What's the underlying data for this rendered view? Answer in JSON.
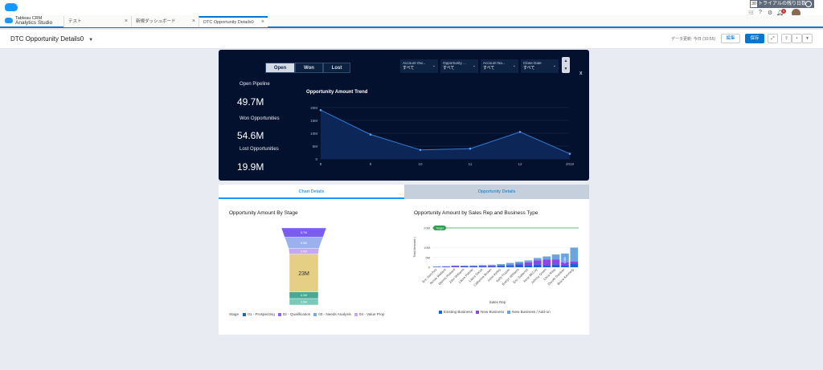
{
  "topbar": {
    "trial_count": "30",
    "trial_label": "トライアルの残り日数",
    "icons": [
      "grid-icon",
      "help-icon",
      "setup-icon",
      "bell-icon"
    ],
    "notification_count": "1"
  },
  "app": {
    "line1": "Tableau CRM",
    "line2": "Analytics Studio"
  },
  "tabs": [
    {
      "label": "テスト"
    },
    {
      "label": "新規ダッシュボード"
    },
    {
      "label": "DTC Opportunity Details0"
    }
  ],
  "header": {
    "title": "DTC Opportunity Details0",
    "modified": "データ更新: 今日 (10:55)",
    "edit_label": "編集",
    "save_label": "保存"
  },
  "segments": [
    {
      "label": "Open"
    },
    {
      "label": "Won"
    },
    {
      "label": "Lost"
    }
  ],
  "filters": [
    {
      "label": "Account Ow...",
      "value": "すべて"
    },
    {
      "label": "Opportunity ...",
      "value": "すべて"
    },
    {
      "label": "Account Na...",
      "value": "すべて"
    },
    {
      "label": "Close Date",
      "value": "すべて"
    }
  ],
  "close_label": "x",
  "kpis": [
    {
      "label": "Open Pipeline",
      "value": "49.7M"
    },
    {
      "label": "Won Opportunities",
      "value": "54.6M"
    },
    {
      "label": "Lost Opportunities",
      "value": "19.9M"
    }
  ],
  "trend_title": "Opportunity Amount Trend",
  "lower_tabs": [
    {
      "label": "Chart Details"
    },
    {
      "label": "Opportunity Details"
    }
  ],
  "funnel_title": "Opportunity Amount By Stage",
  "bar_title": "Opportunity Amount by Sales Rep and Business Type",
  "funnel_legend": {
    "title": "Stage",
    "items": [
      {
        "label": "01 - Prospecting",
        "color": "#1b62d8"
      },
      {
        "label": "02 - Qualification",
        "color": "#9b5cf6"
      },
      {
        "label": "03 - Needs Analysis",
        "color": "#7fa6e0"
      },
      {
        "label": "04 - Value Prop",
        "color": "#c7a6f3"
      }
    ]
  },
  "bar_legend": {
    "items": [
      {
        "label": "Existing Business",
        "color": "#1b62d8"
      },
      {
        "label": "New Business",
        "color": "#8e44e8"
      },
      {
        "label": "New Business / Add-on",
        "color": "#6aa5e0"
      }
    ]
  },
  "chart_data": [
    {
      "type": "area",
      "title": "Opportunity Amount Trend",
      "x": [
        "8",
        "9",
        "10",
        "11",
        "12",
        "2019"
      ],
      "values": [
        19,
        9.5,
        3.5,
        4,
        10.5,
        2
      ],
      "yticks": [
        "0",
        "5M",
        "10M",
        "15M",
        "20M"
      ],
      "ylim": [
        0,
        20
      ],
      "color": "#2f7bd6"
    },
    {
      "type": "bar",
      "subtype": "funnel",
      "title": "Opportunity Amount By Stage",
      "stages": [
        {
          "label": "5.7M",
          "value": 5.7,
          "color": "#7a5cf0"
        },
        {
          "label": "6.9M",
          "value": 6.9,
          "color": "#9bb1ee"
        },
        {
          "label": "3.5M",
          "value": 3.5,
          "color": "#c4a8f3"
        },
        {
          "label": "23M",
          "value": 23,
          "color": "#e4cf84"
        },
        {
          "label": "4.1M",
          "value": 4.1,
          "color": "#4aa894"
        },
        {
          "label": "3.9M",
          "value": 3.9,
          "color": "#7bc9b8"
        }
      ]
    },
    {
      "type": "bar",
      "subtype": "stacked",
      "title": "Opportunity Amount by Sales Rep and Business Type",
      "xlabel": "Sales Rep",
      "ylabel": "Total Amount (",
      "yticks": [
        "0",
        "5M",
        "10M",
        "20M"
      ],
      "ylim": [
        0,
        20
      ],
      "target": {
        "label": "Target",
        "value": 20
      },
      "annotation": "6.8M",
      "categories": [
        "Eric Sanchez",
        "Nicole Wallace",
        "Dennis Howard",
        "John Williams",
        "Laura Palmer",
        "Laura Garza",
        "Catherine Brown",
        "Irene Kelley",
        "Kelly Frazier",
        "Evelyn Williams",
        "Eric Gutierrez",
        "Irene McCoy",
        "Johnny Green",
        "Chris Riley",
        "Doroth Gardner",
        "Bruce Kennedy"
      ],
      "series": [
        {
          "name": "Existing Business",
          "values": [
            0.2,
            0.3,
            0.3,
            0.4,
            0.4,
            0.5,
            0.5,
            0.6,
            0.7,
            1.5,
            1,
            1.5,
            1,
            1.5,
            1,
            2
          ]
        },
        {
          "name": "New Business",
          "values": [
            0.1,
            0.2,
            0.5,
            0.3,
            0.3,
            0.3,
            0.4,
            0.4,
            0.5,
            0.5,
            1.5,
            2,
            3,
            2.5,
            1.5,
            1
          ]
        },
        {
          "name": "New Business / Add-on",
          "values": [
            0,
            0,
            0,
            0.1,
            0.2,
            0.3,
            0.4,
            0.6,
            1,
            0.8,
            1,
            1.2,
            1.5,
            2.5,
            4.5,
            7
          ]
        }
      ]
    }
  ]
}
